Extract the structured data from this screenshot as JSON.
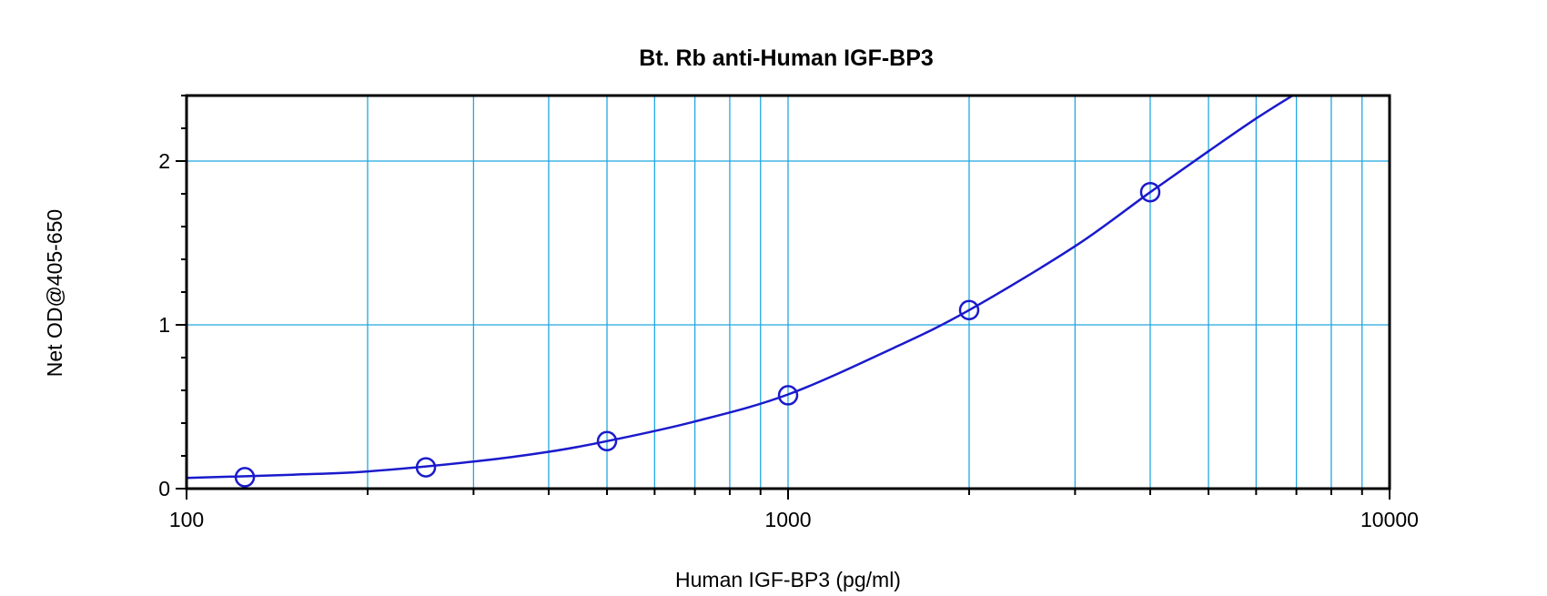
{
  "chart_data": {
    "type": "scatter",
    "title": "Bt. Rb anti-Human IGF-BP3",
    "xlabel": "Human IGF-BP3 (pg/ml)",
    "ylabel": "Net OD@405-650",
    "x_scale": "log",
    "xlim": [
      100,
      10000
    ],
    "ylim": [
      0,
      2.4
    ],
    "x_ticks": [
      100,
      1000,
      10000
    ],
    "x_tick_labels": [
      "100",
      "1000",
      "10000"
    ],
    "y_ticks": [
      0,
      1,
      2
    ],
    "y_tick_labels": [
      "0",
      "1",
      "2"
    ],
    "grid": true,
    "colors": {
      "series": "#1a1acc",
      "grid": "#22a7e0",
      "axis": "#000000"
    },
    "series": [
      {
        "marker": "circle",
        "x": [
          125,
          250,
          500,
          1000,
          2000,
          4000
        ],
        "y": [
          0.07,
          0.13,
          0.29,
          0.57,
          1.09,
          1.81
        ]
      }
    ],
    "fit_curve": {
      "x": [
        100,
        150,
        200,
        300,
        400,
        500,
        700,
        1000,
        1500,
        2000,
        3000,
        4000,
        5000,
        6000,
        6900
      ],
      "y": [
        0.065,
        0.085,
        0.105,
        0.165,
        0.225,
        0.29,
        0.41,
        0.575,
        0.86,
        1.09,
        1.48,
        1.81,
        2.06,
        2.26,
        2.4
      ]
    }
  }
}
